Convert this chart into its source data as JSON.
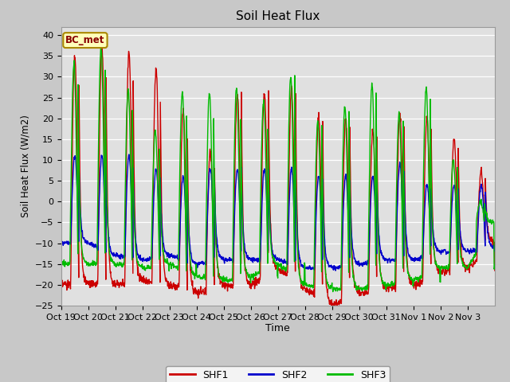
{
  "title": "Soil Heat Flux",
  "xlabel": "Time",
  "ylabel": "Soil Heat Flux (W/m2)",
  "ylim": [
    -25,
    42
  ],
  "yticks": [
    -25,
    -20,
    -15,
    -10,
    -5,
    0,
    5,
    10,
    15,
    20,
    25,
    30,
    35,
    40
  ],
  "series_colors": {
    "SHF1": "#cc0000",
    "SHF2": "#0000cc",
    "SHF3": "#00bb00"
  },
  "series_linewidth": 1.0,
  "fig_bg_color": "#c8c8c8",
  "plot_bg_color": "#e0e0e0",
  "annotation_text": "BC_met",
  "annotation_bg": "#ffffbb",
  "annotation_border": "#aa8800",
  "xtick_labels": [
    "Oct 19",
    "Oct 20",
    "Oct 21",
    "Oct 22",
    "Oct 23",
    "Oct 24",
    "Oct 25",
    "Oct 26",
    "Oct 27",
    "Oct 28",
    "Oct 29",
    "Oct 30",
    "Oct 31",
    "Nov 1",
    "Nov 2",
    "Nov 3"
  ],
  "n_days": 16,
  "pts_per_day": 96,
  "shf1_day_amps": [
    35,
    37,
    36,
    32,
    22,
    12,
    26,
    26,
    27,
    21,
    20,
    17,
    21,
    20,
    15,
    7
  ],
  "shf1_night": [
    -20,
    -20,
    -19,
    -20,
    -22,
    -20,
    -20,
    -16,
    -21,
    -25,
    -22,
    -21,
    -20,
    -17,
    -16,
    -10
  ],
  "shf2_day_amps": [
    11,
    11,
    11,
    8,
    6,
    8,
    8,
    8,
    8,
    6,
    6,
    6,
    9,
    4,
    4,
    4
  ],
  "shf2_night": [
    -10,
    -13,
    -14,
    -13,
    -15,
    -14,
    -14,
    -14,
    -16,
    -16,
    -15,
    -14,
    -14,
    -12,
    -12,
    -11
  ],
  "shf3_day_amps": [
    33,
    37,
    27,
    17,
    26,
    26,
    27,
    24,
    30,
    19,
    23,
    28,
    21,
    27,
    10,
    0
  ],
  "shf3_night": [
    -15,
    -15,
    -16,
    -15,
    -18,
    -19,
    -18,
    -15,
    -20,
    -21,
    -21,
    -20,
    -19,
    -16,
    -16,
    -5
  ],
  "shf3_phase_shift": 0.03
}
